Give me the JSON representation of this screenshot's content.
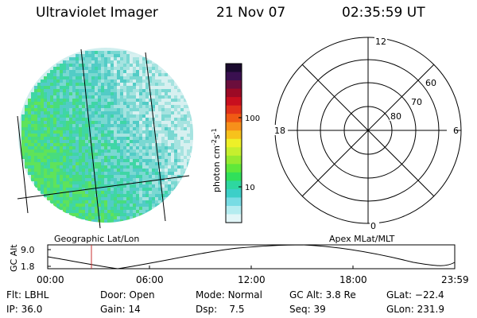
{
  "header": {
    "instrument": "Ultraviolet Imager",
    "date": "21 Nov 07",
    "time": "02:35:59 UT"
  },
  "image_panel": {
    "label": "Geographic Lat/Lon"
  },
  "colorbar": {
    "axis_label_parts": [
      "photon cm",
      "-2",
      "s",
      "-1"
    ],
    "ticks": [
      "100",
      "10"
    ],
    "colors": [
      "#1a0a2e",
      "#3a1050",
      "#6b0e3c",
      "#9c0a25",
      "#c80f1e",
      "#e0301a",
      "#f05a14",
      "#f7901a",
      "#f7c21c",
      "#eef028",
      "#c6ef2e",
      "#96ea30",
      "#5fe83a",
      "#30e05a",
      "#2ed7a0",
      "#3ccfc8",
      "#78dce4",
      "#b4ecf0",
      "#e2f6f8"
    ],
    "palette": [
      "#d7f0f0",
      "#a6e3e0",
      "#7ad8d2",
      "#52ccc6",
      "#3fd6a5",
      "#48dc7e",
      "#5fe35a"
    ]
  },
  "polar_plot": {
    "label": "Apex MLat/MLT",
    "mlt_labels": {
      "top": "12",
      "right": "6",
      "bottom": "0",
      "left": "18"
    },
    "lat_labels": [
      "60",
      "70",
      "80"
    ]
  },
  "altitude_plot": {
    "ylabel": "GC Alt",
    "yticks": [
      "9.0",
      "1.8"
    ],
    "xticks": [
      "00:00",
      "06:00",
      "12:00",
      "18:00",
      "23:59"
    ],
    "cursor_color": "#c83030"
  },
  "status": {
    "row1": [
      {
        "key": "Flt:",
        "value": "LBHL"
      },
      {
        "key": "Door:",
        "value": "Open"
      },
      {
        "key": "Mode:",
        "value": "Normal"
      },
      {
        "key": "GC Alt:",
        "value": "3.8 Re"
      },
      {
        "key": "GLat:",
        "value": "−22.4"
      }
    ],
    "row2": [
      {
        "key": "IP:",
        "value": "36.0"
      },
      {
        "key": "Gain:",
        "value": "14"
      },
      {
        "key": "Dsp:",
        "value": "7.5"
      },
      {
        "key": "Seq:",
        "value": "39"
      },
      {
        "key": "GLon:",
        "value": "231.9"
      }
    ]
  }
}
